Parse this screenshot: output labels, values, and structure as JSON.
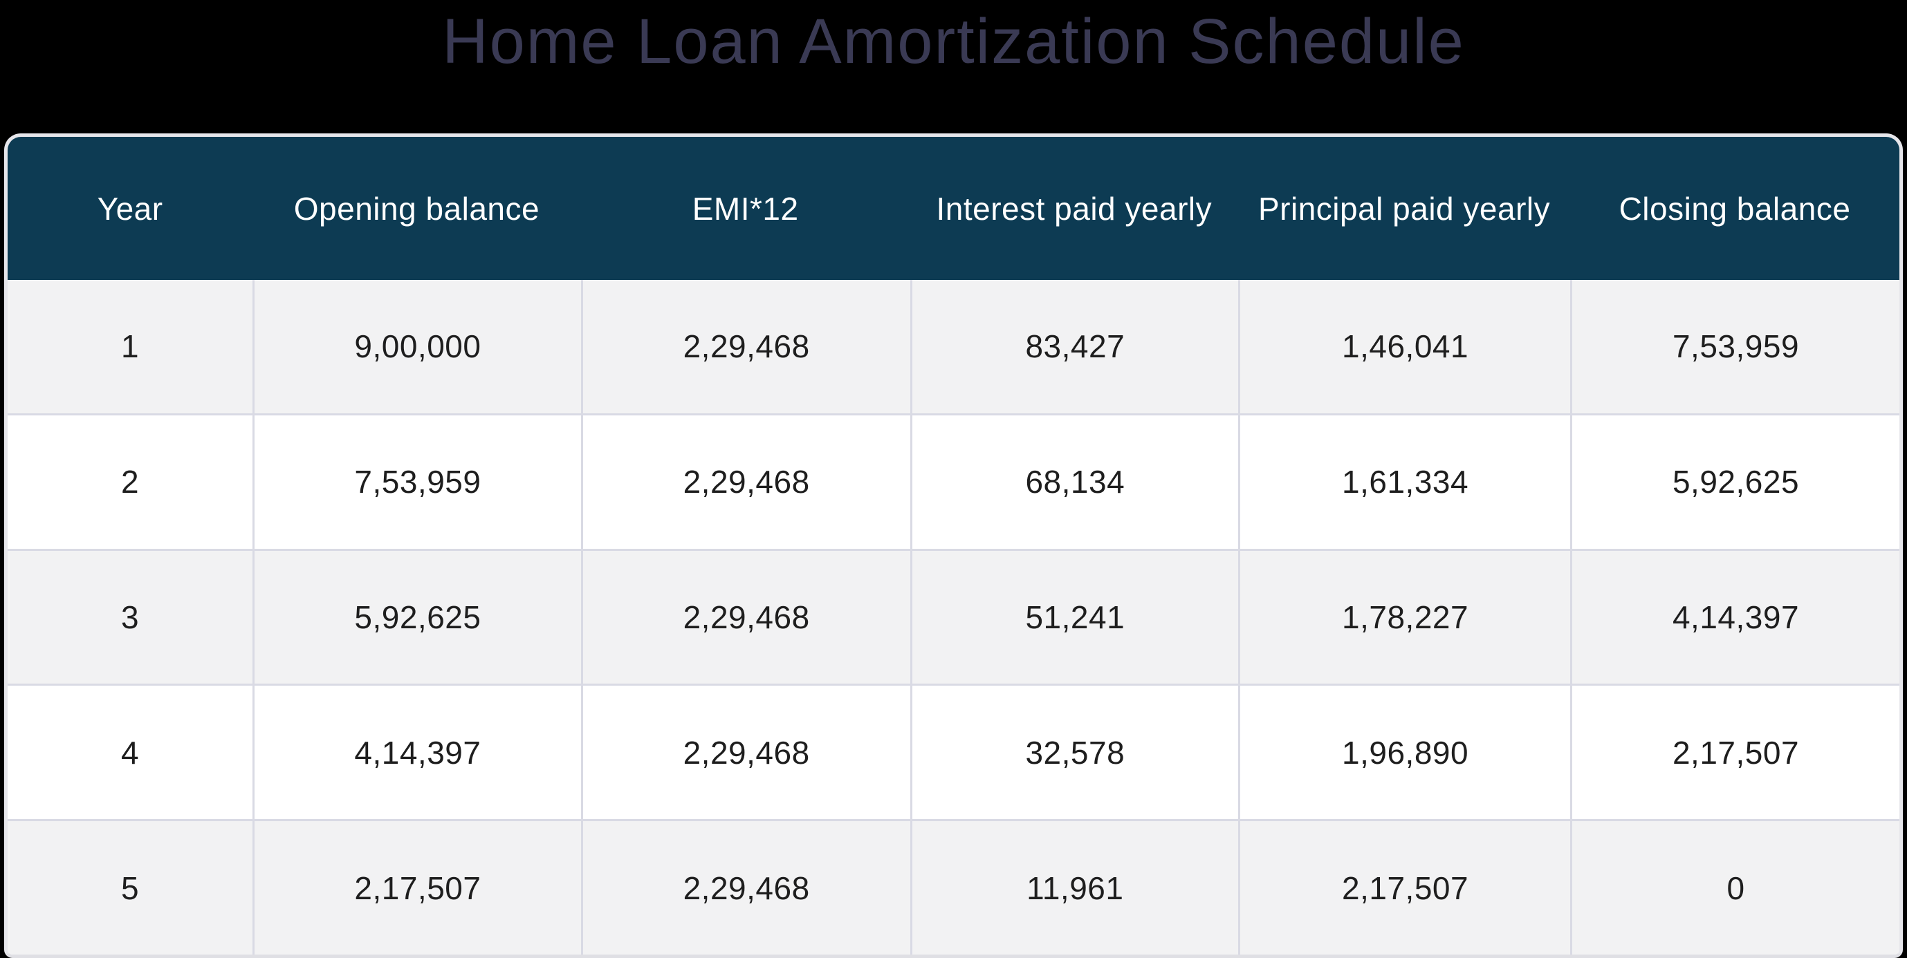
{
  "page": {
    "title": "Home Loan Amortization Schedule"
  },
  "colors": {
    "page_background": "#000000",
    "title_text": "#3a3a54",
    "header_background": "#0d3b53",
    "header_text": "#ffffff",
    "row_stripe": "#f2f2f3",
    "row_plain": "#ffffff",
    "grid_line": "#d9dae4",
    "cell_text": "#1e1e1e",
    "table_border": "#e6e6eb"
  },
  "table": {
    "columns": [
      "Year",
      "Opening balance",
      "EMI*12",
      "Interest paid yearly",
      "Principal paid yearly",
      "Closing balance"
    ],
    "rows": [
      [
        "1",
        "9,00,000",
        "2,29,468",
        "83,427",
        "1,46,041",
        "7,53,959"
      ],
      [
        "2",
        "7,53,959",
        "2,29,468",
        "68,134",
        "1,61,334",
        "5,92,625"
      ],
      [
        "3",
        "5,92,625",
        "2,29,468",
        "51,241",
        "1,78,227",
        "4,14,397"
      ],
      [
        "4",
        "4,14,397",
        "2,29,468",
        "32,578",
        "1,96,890",
        "2,17,507"
      ],
      [
        "5",
        "2,17,507",
        "2,29,468",
        "11,961",
        "2,17,507",
        "0"
      ]
    ]
  },
  "chart_data": {
    "type": "table",
    "title": "Home Loan Amortization Schedule",
    "columns": [
      "Year",
      "Opening balance",
      "EMI*12",
      "Interest paid yearly",
      "Principal paid yearly",
      "Closing balance"
    ],
    "rows": [
      [
        1,
        900000,
        229468,
        83427,
        146041,
        753959
      ],
      [
        2,
        753959,
        229468,
        68134,
        161334,
        592625
      ],
      [
        3,
        592625,
        229468,
        51241,
        178227,
        414397
      ],
      [
        4,
        414397,
        229468,
        32578,
        196890,
        217507
      ],
      [
        5,
        217507,
        229468,
        11961,
        217507,
        0
      ]
    ],
    "number_format": "indian-grouping",
    "layout_hints": {
      "header_style": "dark-teal with white text",
      "zebra_striping": "odd rows light gray, even rows white",
      "alignment": "all cells centered"
    }
  }
}
